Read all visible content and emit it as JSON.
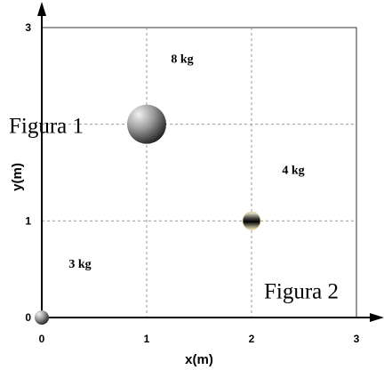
{
  "chart_data": {
    "type": "scatter",
    "xlabel": "x(m)",
    "ylabel": "y(m)",
    "xlim": [
      0,
      3
    ],
    "ylim": [
      0,
      3
    ],
    "x_ticks": [
      0,
      1,
      2,
      3
    ],
    "y_ticks": [
      0,
      1,
      3
    ],
    "grid": true,
    "points": [
      {
        "x": 0,
        "y": 0,
        "mass_label": "3 kg"
      },
      {
        "x": 1,
        "y": 2,
        "mass_label": "8 kg",
        "figure_label": "Figura 1"
      },
      {
        "x": 2,
        "y": 1,
        "mass_label": "4 kg",
        "figure_label": "Figura 2"
      }
    ],
    "colors": {
      "axis": "#000000",
      "grid": "#9a9a9a",
      "sphere_light": "#f2f2f2",
      "sphere_dark": "#141414"
    }
  }
}
